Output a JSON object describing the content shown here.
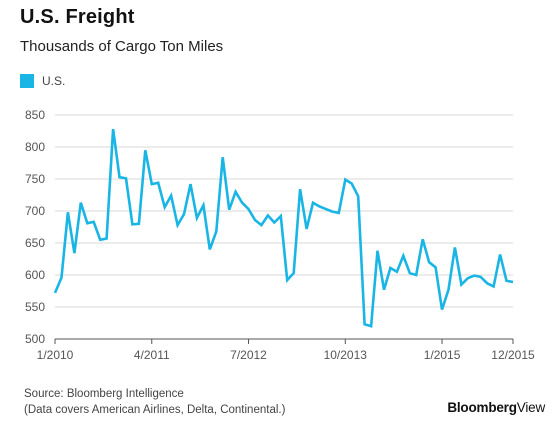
{
  "header": {
    "title": "U.S. Freight",
    "subtitle": "Thousands of Cargo Ton Miles"
  },
  "legend": {
    "label": "U.S.",
    "color": "#19b5e5"
  },
  "source": {
    "line1": "Source: Bloomberg Intelligence",
    "line2": "(Data covers American Airlines, Delta, Continental.)"
  },
  "logo": {
    "brand": "Bloomberg",
    "product": "View"
  },
  "chart_data": {
    "type": "line",
    "title": "U.S. Freight",
    "subtitle": "Thousands of Cargo Ton Miles",
    "ylim": [
      500,
      850
    ],
    "yticks": [
      500,
      550,
      600,
      650,
      700,
      750,
      800,
      850
    ],
    "xticks": [
      "1/2010",
      "4/2011",
      "7/2012",
      "10/2013",
      "1/2015",
      "12/2015"
    ],
    "grid": "horizontal",
    "legend_position": "top-left",
    "x": [
      "2010-01",
      "2010-02",
      "2010-03",
      "2010-04",
      "2010-05",
      "2010-06",
      "2010-07",
      "2010-08",
      "2010-09",
      "2010-10",
      "2010-11",
      "2010-12",
      "2011-01",
      "2011-02",
      "2011-03",
      "2011-04",
      "2011-05",
      "2011-06",
      "2011-07",
      "2011-08",
      "2011-09",
      "2011-10",
      "2011-11",
      "2011-12",
      "2012-01",
      "2012-02",
      "2012-03",
      "2012-04",
      "2012-05",
      "2012-06",
      "2012-07",
      "2012-08",
      "2012-09",
      "2012-10",
      "2012-11",
      "2012-12",
      "2013-01",
      "2013-02",
      "2013-03",
      "2013-04",
      "2013-05",
      "2013-06",
      "2013-07",
      "2013-08",
      "2013-09",
      "2013-10",
      "2013-11",
      "2013-12",
      "2014-01",
      "2014-02",
      "2014-03",
      "2014-04",
      "2014-05",
      "2014-06",
      "2014-07",
      "2014-08",
      "2014-09",
      "2014-10",
      "2014-11",
      "2014-12",
      "2015-01",
      "2015-02",
      "2015-03",
      "2015-04",
      "2015-05",
      "2015-06",
      "2015-07",
      "2015-08",
      "2015-09",
      "2015-10",
      "2015-11",
      "2015-12"
    ],
    "series": [
      {
        "name": "U.S.",
        "color": "#19b5e5",
        "values": [
          572,
          596,
          698,
          634,
          713,
          681,
          683,
          655,
          657,
          828,
          753,
          751,
          679,
          680,
          795,
          742,
          744,
          706,
          724,
          678,
          695,
          742,
          689,
          709,
          640,
          668,
          784,
          702,
          730,
          713,
          703,
          686,
          678,
          693,
          682,
          692,
          592,
          603,
          734,
          672,
          713,
          707,
          703,
          699,
          697,
          749,
          743,
          723,
          523,
          520,
          638,
          577,
          611,
          605,
          630,
          603,
          600,
          656,
          620,
          612,
          546,
          577,
          643,
          585,
          595,
          599,
          597,
          587,
          582,
          632,
          591,
          589
        ]
      }
    ]
  }
}
